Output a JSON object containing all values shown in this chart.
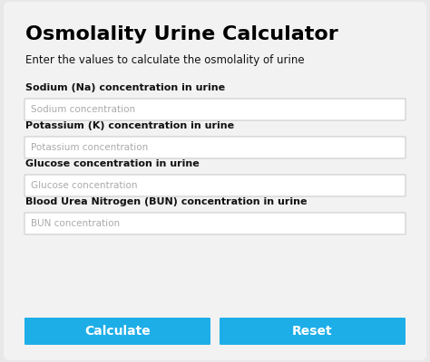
{
  "title": "Osmolality Urine Calculator",
  "subtitle": "Enter the values to calculate the osmolality of urine",
  "labels": [
    "Sodium (Na) concentration in urine",
    "Potassium (K) concentration in urine",
    "Glucose concentration in urine",
    "Blood Urea Nitrogen (BUN) concentration in urine"
  ],
  "placeholders": [
    "Sodium concentration",
    "Potassium concentration",
    "Glucose concentration",
    "BUN concentration"
  ],
  "buttons": [
    "Calculate",
    "Reset"
  ],
  "bg_color": "#e8e8e8",
  "card_color": "#f2f2f2",
  "input_bg": "#ffffff",
  "input_border": "#cccccc",
  "button_color": "#1daee8",
  "button_text_color": "#ffffff",
  "title_color": "#000000",
  "label_color": "#111111",
  "placeholder_color": "#aaaaaa",
  "subtitle_color": "#111111",
  "title_fontsize": 16,
  "subtitle_fontsize": 8.5,
  "label_fontsize": 8.0,
  "placeholder_fontsize": 7.5,
  "btn_fontsize": 10
}
